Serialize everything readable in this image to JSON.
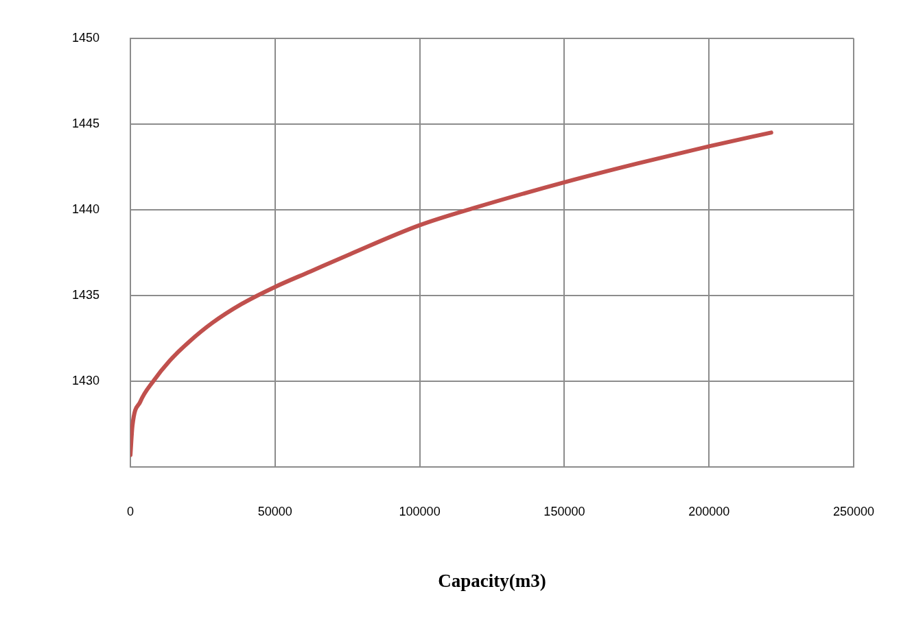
{
  "chart_data": {
    "type": "line",
    "xlabel": "Capacity(m3)",
    "xlim": [
      0,
      250000
    ],
    "xticks": [
      0,
      50000,
      100000,
      150000,
      200000,
      250000
    ],
    "ylim": [
      1425,
      1450
    ],
    "yticks": [
      {
        "value": 1425,
        "label": null
      },
      1430,
      1435,
      1440,
      1445,
      1450
    ],
    "grid": true,
    "legend": false,
    "marker": "none",
    "line_style": "solid",
    "series": [
      {
        "color": "#c0504d",
        "x": [
          0,
          700,
          3400,
          7900,
          13600,
          20300,
          28300,
          38400,
          50000,
          62200,
          75800,
          100000,
          118700,
          150000,
          175300,
          200000,
          221500
        ],
        "values": [
          1425.7,
          1427.4,
          1428.8,
          1430,
          1431.2,
          1432.3,
          1433.4,
          1434.5,
          1435.5,
          1436.4,
          1437.4,
          1439.1,
          1440.1,
          1441.6,
          1442.7,
          1443.7,
          1444.5
        ]
      }
    ]
  }
}
